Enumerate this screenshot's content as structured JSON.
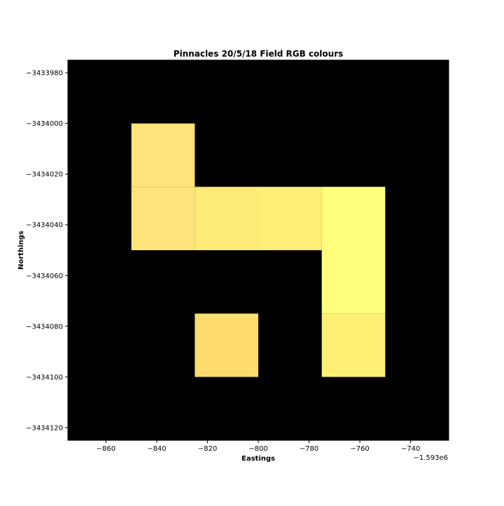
{
  "chart_data": {
    "type": "heatmap",
    "title": "Pinnacles 20/5/18 Field RGB colours",
    "xlabel": "Eastings",
    "ylabel": "Northings",
    "x_offset_label": "−1.593e6",
    "xlim": [
      -875,
      -725
    ],
    "ylim": [
      -3434125,
      -3433975
    ],
    "y_inverted": true,
    "background": "#000000",
    "grid": false,
    "legend": "none",
    "cell_size": 25,
    "x_ticks": [
      -860,
      -840,
      -820,
      -800,
      -780,
      -760,
      -740
    ],
    "x_tick_labels": [
      "−860",
      "−840",
      "−820",
      "−800",
      "−780",
      "−760",
      "−740"
    ],
    "y_ticks": [
      -3433980,
      -3434000,
      -3434020,
      -3434040,
      -3434060,
      -3434080,
      -3434100,
      -3434120
    ],
    "y_tick_labels": [
      "−3433980",
      "−3434000",
      "−3434020",
      "−3434040",
      "−3434060",
      "−3434080",
      "−3434100",
      "−3434120"
    ],
    "cells": [
      {
        "easting": [
          -850,
          -825
        ],
        "northing": [
          -3434000,
          -3434025
        ],
        "color": "#fee27a"
      },
      {
        "easting": [
          -850,
          -825
        ],
        "northing": [
          -3434025,
          -3434050
        ],
        "color": "#fee37a"
      },
      {
        "easting": [
          -825,
          -800
        ],
        "northing": [
          -3434025,
          -3434050
        ],
        "color": "#feea78"
      },
      {
        "easting": [
          -800,
          -775
        ],
        "northing": [
          -3434025,
          -3434050
        ],
        "color": "#ffee78"
      },
      {
        "easting": [
          -775,
          -750
        ],
        "northing": [
          -3434025,
          -3434050
        ],
        "color": "#ffff7d"
      },
      {
        "easting": [
          -775,
          -750
        ],
        "northing": [
          -3434050,
          -3434075
        ],
        "color": "#ffff7b"
      },
      {
        "easting": [
          -775,
          -750
        ],
        "northing": [
          -3434075,
          -3434100
        ],
        "color": "#fff076"
      },
      {
        "easting": [
          -825,
          -800
        ],
        "northing": [
          -3434075,
          -3434100
        ],
        "color": "#fedd6e"
      }
    ]
  }
}
